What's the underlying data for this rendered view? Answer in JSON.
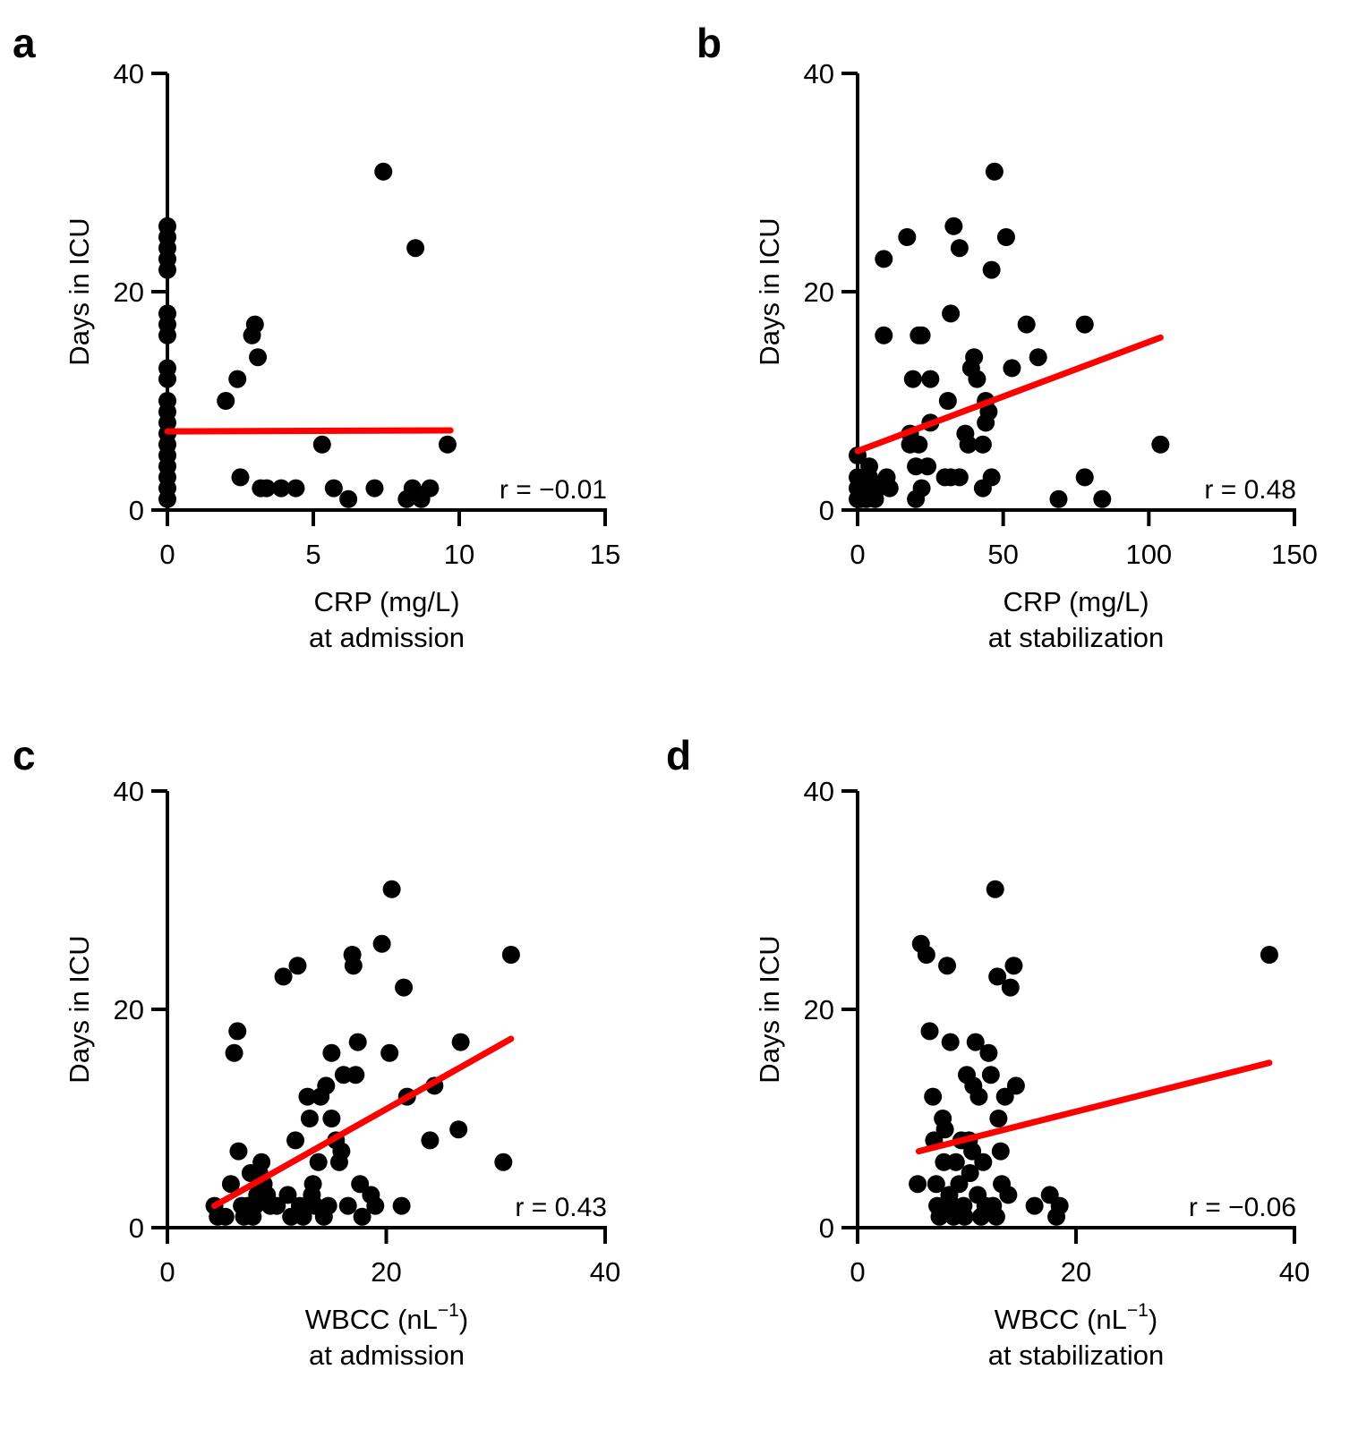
{
  "figure": {
    "colors": {
      "points": "#000000",
      "fit_line": "#ff0000",
      "axis": "#000000"
    }
  },
  "chart_data": [
    {
      "type": "scatter",
      "panel": "a",
      "title": "",
      "ylabel": "Days in ICU",
      "xlabel": [
        "CRP (mg/L)",
        "at admission"
      ],
      "xlim": [
        0,
        15
      ],
      "ylim": [
        0,
        40
      ],
      "xticks": [
        0,
        5,
        10,
        15
      ],
      "yticks": [
        0,
        20,
        40
      ],
      "annotation": "r = −0.01",
      "fit_line": {
        "x": [
          0,
          9.7
        ],
        "y": [
          7.2,
          7.3
        ]
      },
      "points": [
        [
          0,
          1
        ],
        [
          0,
          2
        ],
        [
          0,
          3
        ],
        [
          0,
          4
        ],
        [
          0,
          5
        ],
        [
          0,
          6
        ],
        [
          0,
          7
        ],
        [
          0,
          8
        ],
        [
          0,
          9
        ],
        [
          0,
          10
        ],
        [
          0,
          12
        ],
        [
          0,
          13
        ],
        [
          0,
          16
        ],
        [
          0,
          17
        ],
        [
          0,
          18
        ],
        [
          0,
          22
        ],
        [
          0,
          23
        ],
        [
          0,
          24
        ],
        [
          0,
          25
        ],
        [
          0,
          26
        ],
        [
          2,
          10
        ],
        [
          2.4,
          12
        ],
        [
          2.5,
          3
        ],
        [
          2.9,
          16
        ],
        [
          3,
          17
        ],
        [
          3.1,
          14
        ],
        [
          3.2,
          2
        ],
        [
          3.4,
          2
        ],
        [
          3.9,
          2
        ],
        [
          4.4,
          2
        ],
        [
          5.3,
          6
        ],
        [
          5.7,
          2
        ],
        [
          6.2,
          1
        ],
        [
          7.1,
          2
        ],
        [
          7.4,
          31
        ],
        [
          8.2,
          1
        ],
        [
          8.4,
          2
        ],
        [
          8.5,
          24
        ],
        [
          8.7,
          1
        ],
        [
          9,
          2
        ],
        [
          9.6,
          6
        ]
      ]
    },
    {
      "type": "scatter",
      "panel": "b",
      "title": "",
      "ylabel": "Days in ICU",
      "xlabel": [
        "CRP (mg/L)",
        "at stabilization"
      ],
      "xlim": [
        0,
        150
      ],
      "ylim": [
        0,
        40
      ],
      "xticks": [
        0,
        50,
        100,
        150
      ],
      "yticks": [
        0,
        20,
        40
      ],
      "annotation": "r = 0.48",
      "fit_line": {
        "x": [
          0,
          104
        ],
        "y": [
          5.4,
          15.8
        ]
      },
      "points": [
        [
          0,
          1
        ],
        [
          0,
          2
        ],
        [
          0,
          3
        ],
        [
          0,
          5
        ],
        [
          1,
          1
        ],
        [
          2,
          2
        ],
        [
          3,
          1
        ],
        [
          4,
          3
        ],
        [
          4,
          4
        ],
        [
          5,
          2
        ],
        [
          6,
          1
        ],
        [
          7,
          2
        ],
        [
          9,
          23
        ],
        [
          9,
          16
        ],
        [
          10,
          3
        ],
        [
          11,
          2
        ],
        [
          17,
          25
        ],
        [
          18,
          7
        ],
        [
          18,
          6
        ],
        [
          19,
          12
        ],
        [
          20,
          1
        ],
        [
          20,
          4
        ],
        [
          21,
          16
        ],
        [
          21,
          6
        ],
        [
          22,
          2
        ],
        [
          22,
          16
        ],
        [
          24,
          4
        ],
        [
          25,
          12
        ],
        [
          25,
          8
        ],
        [
          30,
          3
        ],
        [
          31,
          10
        ],
        [
          32,
          18
        ],
        [
          32,
          3
        ],
        [
          33,
          26
        ],
        [
          35,
          24
        ],
        [
          35,
          3
        ],
        [
          37,
          7
        ],
        [
          38,
          6
        ],
        [
          39,
          13
        ],
        [
          40,
          14
        ],
        [
          41,
          12
        ],
        [
          43,
          2
        ],
        [
          43,
          6
        ],
        [
          44,
          10
        ],
        [
          44,
          8
        ],
        [
          45,
          9
        ],
        [
          46,
          3
        ],
        [
          46,
          22
        ],
        [
          47,
          31
        ],
        [
          51,
          25
        ],
        [
          53,
          13
        ],
        [
          58,
          17
        ],
        [
          62,
          14
        ],
        [
          69,
          1
        ],
        [
          78,
          3
        ],
        [
          78,
          17
        ],
        [
          84,
          1
        ],
        [
          104,
          6
        ]
      ]
    },
    {
      "type": "scatter",
      "panel": "c",
      "title": "",
      "ylabel": "Days in ICU",
      "xlabel": [
        "WBCC (nL",
        "−1",
        ")",
        "at admission"
      ],
      "xlim": [
        0,
        40
      ],
      "ylim": [
        0,
        40
      ],
      "xticks": [
        0,
        20,
        40
      ],
      "yticks": [
        0,
        20,
        40
      ],
      "annotation": "r = 0.43",
      "fit_line": {
        "x": [
          4.3,
          31.4
        ],
        "y": [
          2,
          17.3
        ]
      },
      "points": [
        [
          4.3,
          2
        ],
        [
          4.6,
          1
        ],
        [
          5.3,
          1
        ],
        [
          5.8,
          4
        ],
        [
          6.1,
          16
        ],
        [
          6.4,
          18
        ],
        [
          6.5,
          7
        ],
        [
          6.8,
          2
        ],
        [
          7,
          1
        ],
        [
          7.3,
          2
        ],
        [
          7.6,
          5
        ],
        [
          7.8,
          1
        ],
        [
          8,
          2
        ],
        [
          8.2,
          3
        ],
        [
          8.4,
          5
        ],
        [
          8.6,
          6
        ],
        [
          8.8,
          4
        ],
        [
          9.1,
          3
        ],
        [
          9.4,
          2
        ],
        [
          10,
          2
        ],
        [
          10.6,
          23
        ],
        [
          11,
          3
        ],
        [
          11.3,
          1
        ],
        [
          11.7,
          8
        ],
        [
          11.9,
          24
        ],
        [
          12.1,
          2
        ],
        [
          12.4,
          1
        ],
        [
          12.8,
          12
        ],
        [
          13,
          10
        ],
        [
          13.2,
          3
        ],
        [
          13.3,
          4
        ],
        [
          13.5,
          2
        ],
        [
          13.8,
          6
        ],
        [
          14,
          12
        ],
        [
          14.3,
          1
        ],
        [
          14.5,
          13
        ],
        [
          14.7,
          2
        ],
        [
          15,
          16
        ],
        [
          15,
          10
        ],
        [
          15.4,
          8
        ],
        [
          15.7,
          6
        ],
        [
          15.9,
          7
        ],
        [
          16.1,
          14
        ],
        [
          16.5,
          2
        ],
        [
          16.9,
          25
        ],
        [
          17,
          24
        ],
        [
          17.2,
          14
        ],
        [
          17.4,
          17
        ],
        [
          17.6,
          4
        ],
        [
          17.8,
          1
        ],
        [
          18.6,
          3
        ],
        [
          19,
          2
        ],
        [
          19.6,
          26
        ],
        [
          20.5,
          31
        ],
        [
          20.3,
          16
        ],
        [
          21.4,
          2
        ],
        [
          21.6,
          22
        ],
        [
          21.9,
          12
        ],
        [
          24,
          8
        ],
        [
          24.4,
          13
        ],
        [
          26.6,
          9
        ],
        [
          26.8,
          17
        ],
        [
          30.7,
          6
        ],
        [
          31.4,
          25
        ]
      ]
    },
    {
      "type": "scatter",
      "panel": "d",
      "title": "",
      "ylabel": "Days in ICU",
      "xlabel": [
        "WBCC (nL",
        "−1",
        ")",
        "at stabilization"
      ],
      "xlim": [
        0,
        40
      ],
      "ylim": [
        0,
        40
      ],
      "xticks": [
        0,
        20,
        40
      ],
      "yticks": [
        0,
        20,
        40
      ],
      "annotation": "r = −0.06",
      "fit_line": {
        "x": [
          5.6,
          37.7
        ],
        "y": [
          7,
          15.1
        ]
      },
      "points": [
        [
          5.5,
          4
        ],
        [
          5.8,
          26
        ],
        [
          6.3,
          25
        ],
        [
          6.6,
          18
        ],
        [
          6.9,
          12
        ],
        [
          7,
          8
        ],
        [
          7.2,
          4
        ],
        [
          7.3,
          2
        ],
        [
          7.5,
          1
        ],
        [
          7.8,
          10
        ],
        [
          7.9,
          6
        ],
        [
          8,
          9
        ],
        [
          8.2,
          24
        ],
        [
          8.4,
          3
        ],
        [
          8.5,
          17
        ],
        [
          8.7,
          2
        ],
        [
          8.8,
          1
        ],
        [
          9,
          6
        ],
        [
          9.3,
          4
        ],
        [
          9.5,
          8
        ],
        [
          9.7,
          2
        ],
        [
          9.8,
          1
        ],
        [
          10,
          14
        ],
        [
          10.2,
          8
        ],
        [
          10.3,
          5
        ],
        [
          10.5,
          7
        ],
        [
          10.6,
          13
        ],
        [
          10.8,
          17
        ],
        [
          11,
          3
        ],
        [
          11.1,
          12
        ],
        [
          11.3,
          1
        ],
        [
          11.5,
          6
        ],
        [
          11.7,
          2
        ],
        [
          12,
          16
        ],
        [
          12.2,
          14
        ],
        [
          12.4,
          2
        ],
        [
          12.6,
          31
        ],
        [
          12.7,
          1
        ],
        [
          12.8,
          23
        ],
        [
          12.9,
          10
        ],
        [
          13.1,
          7
        ],
        [
          13.2,
          4
        ],
        [
          13.5,
          12
        ],
        [
          13.8,
          3
        ],
        [
          14,
          22
        ],
        [
          14.3,
          24
        ],
        [
          14.5,
          13
        ],
        [
          16.2,
          2
        ],
        [
          17.6,
          3
        ],
        [
          18.2,
          1
        ],
        [
          18.5,
          2
        ],
        [
          37.7,
          25
        ]
      ]
    }
  ]
}
